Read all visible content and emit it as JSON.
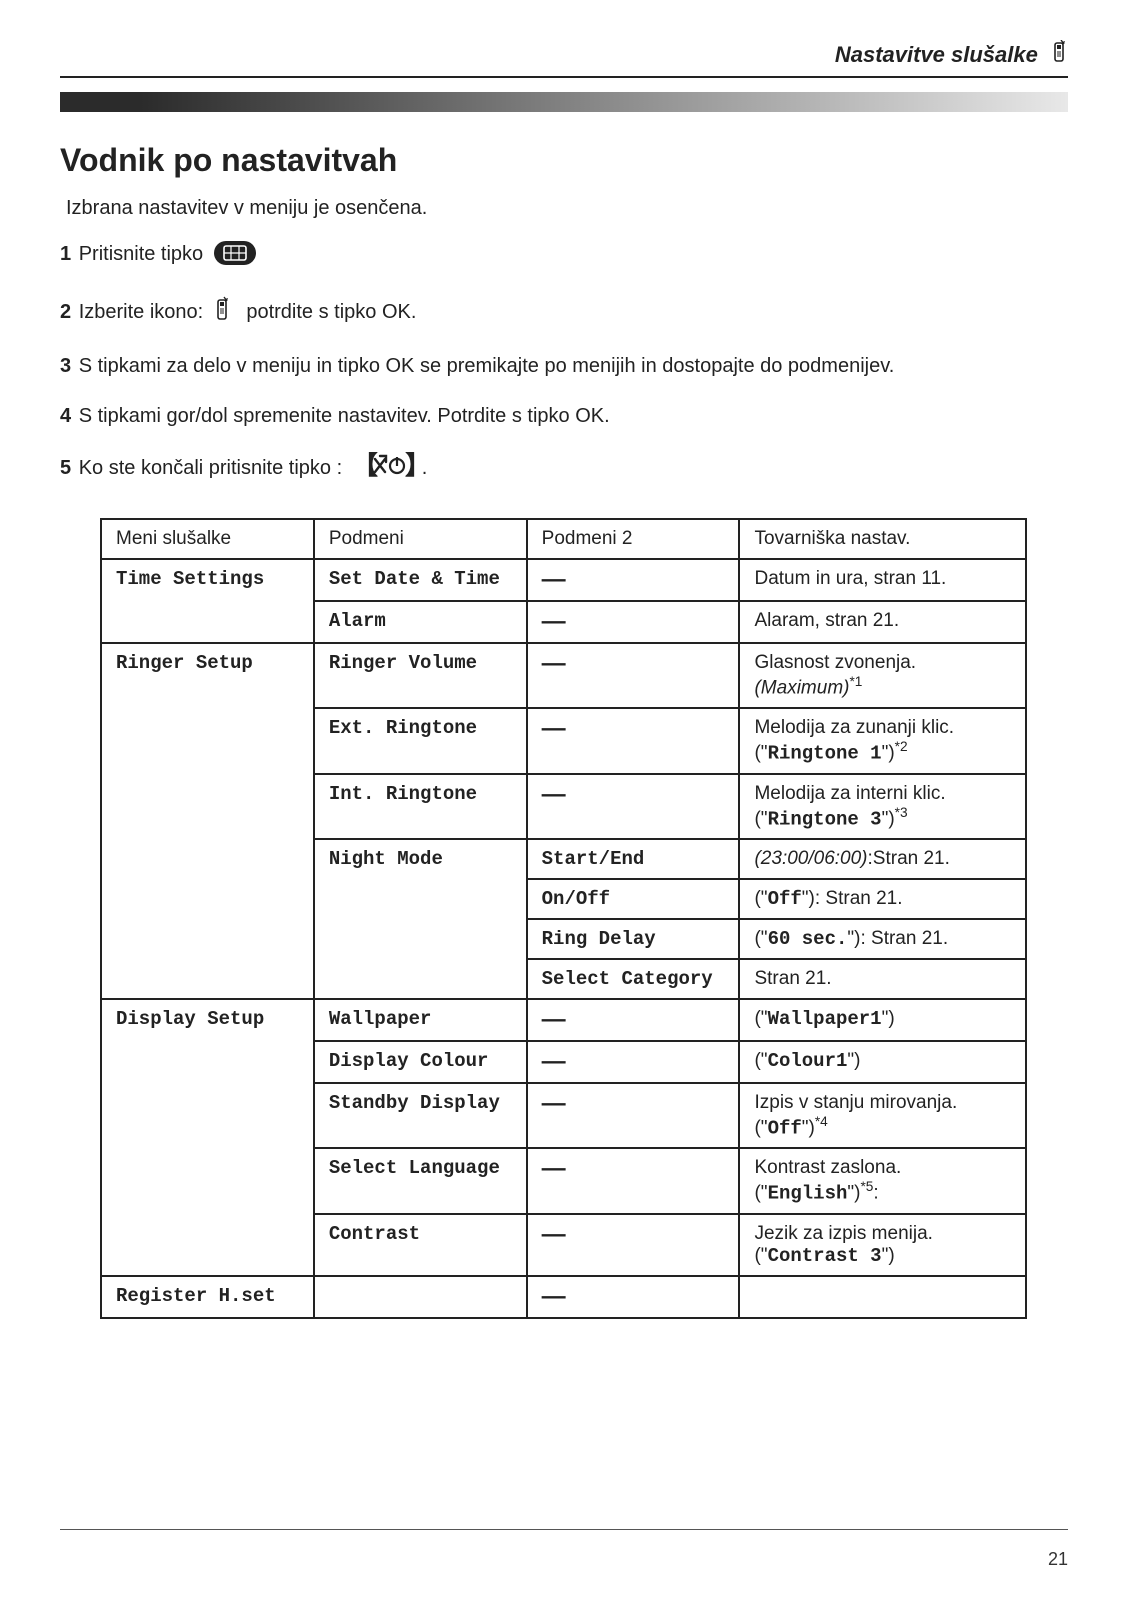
{
  "header": {
    "title": "Nastavitve slušalke"
  },
  "title": "Vodnik po nastavitvah",
  "intro": "Izbrana nastavitev v meniju je osenčena.",
  "steps": {
    "s1": "Pritisnite tipko",
    "s2a": "Izberite ikono:",
    "s2b": "potrdite s tipko OK.",
    "s3": "S tipkami za delo v meniju in tipko OK se premikajte po menijih in dostopajte do podmenijev.",
    "s4": "S tipkami gor/dol spremenite nastavitev. Potrdite s tipko OK.",
    "s5": "Ko ste končali pritisnite tipko :"
  },
  "table": {
    "columns": [
      "Meni slušalke",
      "Podmeni",
      "Podmeni 2",
      "Tovarniška nastav."
    ],
    "col_widths": [
      "23%",
      "23%",
      "23%",
      "31%"
    ],
    "rows": [
      {
        "menu": "Time Settings",
        "sub": "Set Date & Time",
        "sub2": "—",
        "fact": {
          "text": "Datum in ura, stran 11."
        }
      },
      {
        "menu": "",
        "sub": "Alarm",
        "sub2": "—",
        "fact": {
          "text": "Alaram, stran 21."
        }
      },
      {
        "menu": "Ringer Setup",
        "sub": "Ringer Volume",
        "sub2": "—",
        "fact": {
          "text": "Glasnost zvonenja.",
          "ital": "(Maximum)",
          "sup": "*1"
        }
      },
      {
        "menu": "",
        "sub": "Ext. Ringtone",
        "sub2": "—",
        "fact": {
          "text": "Melodija za zunanji klic.",
          "quote_pre": "(\"",
          "mono": "Ringtone  1",
          "quote_post": "\")",
          "sup": "*2"
        }
      },
      {
        "menu": "",
        "sub": "Int. Ringtone",
        "sub2": "—",
        "fact": {
          "text": "Melodija za interni klic.",
          "quote_pre": "(\"",
          "mono": "Ringtone  3",
          "quote_post": "\")",
          "sup": "*3"
        }
      },
      {
        "menu": "",
        "sub": "Night Mode",
        "sub2": "Start/End",
        "fact": {
          "ital": "(23:00/06:00)",
          "after": ":Stran 21."
        }
      },
      {
        "menu": "",
        "sub": "",
        "sub2": "On/Off",
        "fact": {
          "quote_pre": "(\"",
          "mono": "Off",
          "quote_post": "\"): ",
          "after": "Stran 21."
        }
      },
      {
        "menu": "",
        "sub": "",
        "sub2": "Ring Delay",
        "fact": {
          "quote_pre": "(\"",
          "mono": "60 sec.",
          "quote_post": "\"): ",
          "after": "Stran 21."
        }
      },
      {
        "menu": "",
        "sub": "",
        "sub2": "Select Category",
        "fact": {
          "text": "Stran 21."
        }
      },
      {
        "menu": "Display Setup",
        "sub": "Wallpaper",
        "sub2": "—",
        "fact": {
          "quote_pre": "(\"",
          "mono": "Wallpaper1",
          "quote_post": "\")"
        }
      },
      {
        "menu": "",
        "sub": "Display Colour",
        "sub2": "—",
        "fact": {
          "quote_pre": "(\"",
          "mono": "Colour1",
          "quote_post": "\")"
        }
      },
      {
        "menu": "",
        "sub": "Standby Display",
        "sub2": "—",
        "fact": {
          "text": "Izpis v stanju mirovanja.",
          "quote_pre": "(\"",
          "mono": "Off",
          "quote_post": "\")",
          "sup": "*4"
        }
      },
      {
        "menu": "",
        "sub": "Select Language",
        "sub2": "—",
        "fact": {
          "text": "Kontrast zaslona.",
          "quote_pre": "(\"",
          "mono": "English",
          "quote_post": "\")",
          "sup": "*5",
          "after": ":"
        }
      },
      {
        "menu": "",
        "sub": "Contrast",
        "sub2": "—",
        "fact": {
          "text": "Jezik za izpis menija.",
          "quote_pre": "(\"",
          "mono": "Contrast 3",
          "quote_post": "\")"
        }
      },
      {
        "menu": "Register H.set",
        "sub": "",
        "sub2": "—",
        "fact": {}
      }
    ],
    "menu_rowspans": {
      "0": 2,
      "2": 7,
      "9": 5,
      "14": 1
    },
    "sub_rowspans": {
      "5": 4
    }
  },
  "page_number": "21",
  "colors": {
    "text": "#222222",
    "border": "#222222",
    "gradient_start": "#2b2b2b",
    "gradient_end": "#e8e8e8"
  }
}
